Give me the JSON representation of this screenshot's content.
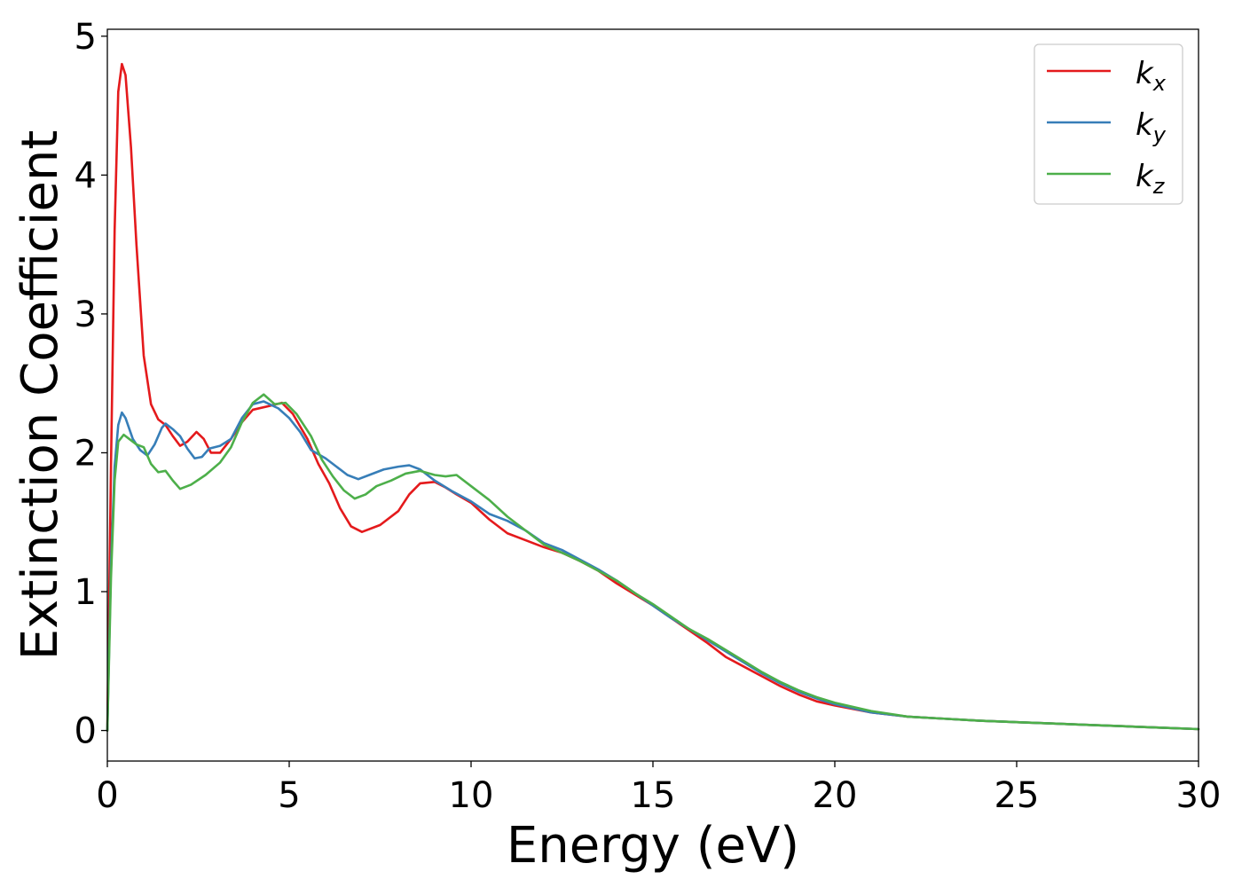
{
  "chart_data": {
    "type": "line",
    "title": "",
    "xlabel": "Energy (eV)",
    "ylabel": "Extinction Coefficient",
    "xlim": [
      0,
      30
    ],
    "ylim": [
      -0.22,
      5.05
    ],
    "xticks": [
      0,
      5,
      10,
      15,
      20,
      25,
      30
    ],
    "yticks": [
      0,
      1,
      2,
      3,
      4,
      5
    ],
    "grid": false,
    "legend_position": "top-right",
    "series": [
      {
        "name": "k_x",
        "label_main": "k",
        "label_sub": "x",
        "color": "#e41a1c",
        "points": [
          [
            0,
            0
          ],
          [
            0.1,
            1.9
          ],
          [
            0.2,
            3.6
          ],
          [
            0.3,
            4.6
          ],
          [
            0.4,
            4.8
          ],
          [
            0.5,
            4.72
          ],
          [
            0.65,
            4.2
          ],
          [
            0.8,
            3.5
          ],
          [
            1.0,
            2.7
          ],
          [
            1.2,
            2.35
          ],
          [
            1.4,
            2.24
          ],
          [
            1.6,
            2.2
          ],
          [
            1.8,
            2.12
          ],
          [
            2.0,
            2.05
          ],
          [
            2.2,
            2.08
          ],
          [
            2.45,
            2.15
          ],
          [
            2.65,
            2.1
          ],
          [
            2.85,
            2.0
          ],
          [
            3.1,
            2.0
          ],
          [
            3.4,
            2.1
          ],
          [
            3.7,
            2.22
          ],
          [
            4.0,
            2.31
          ],
          [
            4.5,
            2.34
          ],
          [
            4.8,
            2.36
          ],
          [
            5.1,
            2.28
          ],
          [
            5.5,
            2.1
          ],
          [
            5.8,
            1.92
          ],
          [
            6.1,
            1.78
          ],
          [
            6.4,
            1.6
          ],
          [
            6.7,
            1.47
          ],
          [
            7.0,
            1.43
          ],
          [
            7.5,
            1.48
          ],
          [
            8.0,
            1.58
          ],
          [
            8.3,
            1.7
          ],
          [
            8.6,
            1.78
          ],
          [
            9.0,
            1.79
          ],
          [
            9.3,
            1.75
          ],
          [
            9.6,
            1.7
          ],
          [
            10.0,
            1.64
          ],
          [
            10.5,
            1.52
          ],
          [
            11.0,
            1.42
          ],
          [
            11.5,
            1.37
          ],
          [
            12.0,
            1.32
          ],
          [
            12.5,
            1.28
          ],
          [
            13.0,
            1.22
          ],
          [
            13.5,
            1.15
          ],
          [
            14.0,
            1.06
          ],
          [
            14.5,
            0.98
          ],
          [
            15.0,
            0.9
          ],
          [
            15.5,
            0.81
          ],
          [
            16.0,
            0.72
          ],
          [
            16.5,
            0.63
          ],
          [
            17.0,
            0.53
          ],
          [
            17.5,
            0.46
          ],
          [
            18.0,
            0.39
          ],
          [
            18.5,
            0.32
          ],
          [
            19.0,
            0.26
          ],
          [
            19.5,
            0.21
          ],
          [
            20.0,
            0.18
          ],
          [
            21.0,
            0.13
          ],
          [
            22.0,
            0.1
          ],
          [
            23.0,
            0.085
          ],
          [
            24.0,
            0.07
          ],
          [
            25.0,
            0.06
          ],
          [
            26.0,
            0.05
          ],
          [
            27.0,
            0.04
          ],
          [
            28.0,
            0.03
          ],
          [
            29.0,
            0.02
          ],
          [
            30.0,
            0.01
          ]
        ]
      },
      {
        "name": "k_y",
        "label_main": "k",
        "label_sub": "y",
        "color": "#377eb8",
        "points": [
          [
            0,
            0
          ],
          [
            0.1,
            1.2
          ],
          [
            0.2,
            1.9
          ],
          [
            0.3,
            2.2
          ],
          [
            0.4,
            2.29
          ],
          [
            0.5,
            2.25
          ],
          [
            0.7,
            2.1
          ],
          [
            0.9,
            2.02
          ],
          [
            1.1,
            1.98
          ],
          [
            1.3,
            2.06
          ],
          [
            1.5,
            2.18
          ],
          [
            1.6,
            2.21
          ],
          [
            1.8,
            2.17
          ],
          [
            2.0,
            2.12
          ],
          [
            2.2,
            2.03
          ],
          [
            2.4,
            1.96
          ],
          [
            2.6,
            1.97
          ],
          [
            2.8,
            2.03
          ],
          [
            3.1,
            2.05
          ],
          [
            3.4,
            2.1
          ],
          [
            3.7,
            2.25
          ],
          [
            4.0,
            2.35
          ],
          [
            4.3,
            2.37
          ],
          [
            4.7,
            2.32
          ],
          [
            5.0,
            2.25
          ],
          [
            5.3,
            2.15
          ],
          [
            5.6,
            2.02
          ],
          [
            6.0,
            1.96
          ],
          [
            6.3,
            1.9
          ],
          [
            6.6,
            1.84
          ],
          [
            6.9,
            1.81
          ],
          [
            7.2,
            1.84
          ],
          [
            7.6,
            1.88
          ],
          [
            8.0,
            1.9
          ],
          [
            8.3,
            1.91
          ],
          [
            8.6,
            1.88
          ],
          [
            9.0,
            1.8
          ],
          [
            9.5,
            1.72
          ],
          [
            10.0,
            1.65
          ],
          [
            10.5,
            1.56
          ],
          [
            11.0,
            1.51
          ],
          [
            11.5,
            1.44
          ],
          [
            12.0,
            1.35
          ],
          [
            12.5,
            1.3
          ],
          [
            13.0,
            1.23
          ],
          [
            13.5,
            1.16
          ],
          [
            14.0,
            1.08
          ],
          [
            14.5,
            0.99
          ],
          [
            15.0,
            0.9
          ],
          [
            15.5,
            0.81
          ],
          [
            16.0,
            0.73
          ],
          [
            16.5,
            0.65
          ],
          [
            17.0,
            0.57
          ],
          [
            17.5,
            0.49
          ],
          [
            18.0,
            0.41
          ],
          [
            18.5,
            0.34
          ],
          [
            19.0,
            0.28
          ],
          [
            19.5,
            0.23
          ],
          [
            20.0,
            0.19
          ],
          [
            21.0,
            0.13
          ],
          [
            22.0,
            0.1
          ],
          [
            23.0,
            0.085
          ],
          [
            24.0,
            0.07
          ],
          [
            25.0,
            0.06
          ],
          [
            26.0,
            0.05
          ],
          [
            27.0,
            0.04
          ],
          [
            28.0,
            0.03
          ],
          [
            29.0,
            0.02
          ],
          [
            30.0,
            0.01
          ]
        ]
      },
      {
        "name": "k_z",
        "label_main": "k",
        "label_sub": "z",
        "color": "#4daf4a",
        "points": [
          [
            0,
            0
          ],
          [
            0.1,
            1.1
          ],
          [
            0.2,
            1.8
          ],
          [
            0.3,
            2.08
          ],
          [
            0.45,
            2.13
          ],
          [
            0.6,
            2.1
          ],
          [
            0.8,
            2.06
          ],
          [
            1.0,
            2.04
          ],
          [
            1.2,
            1.92
          ],
          [
            1.4,
            1.86
          ],
          [
            1.6,
            1.87
          ],
          [
            1.8,
            1.8
          ],
          [
            2.0,
            1.74
          ],
          [
            2.3,
            1.77
          ],
          [
            2.7,
            1.84
          ],
          [
            3.1,
            1.93
          ],
          [
            3.4,
            2.04
          ],
          [
            3.7,
            2.22
          ],
          [
            4.0,
            2.36
          ],
          [
            4.3,
            2.42
          ],
          [
            4.6,
            2.35
          ],
          [
            4.9,
            2.36
          ],
          [
            5.2,
            2.28
          ],
          [
            5.6,
            2.12
          ],
          [
            5.9,
            1.95
          ],
          [
            6.2,
            1.83
          ],
          [
            6.5,
            1.73
          ],
          [
            6.8,
            1.67
          ],
          [
            7.1,
            1.7
          ],
          [
            7.4,
            1.76
          ],
          [
            7.8,
            1.8
          ],
          [
            8.2,
            1.85
          ],
          [
            8.6,
            1.87
          ],
          [
            9.0,
            1.84
          ],
          [
            9.3,
            1.83
          ],
          [
            9.6,
            1.84
          ],
          [
            10.0,
            1.76
          ],
          [
            10.5,
            1.66
          ],
          [
            11.0,
            1.54
          ],
          [
            11.5,
            1.44
          ],
          [
            12.0,
            1.34
          ],
          [
            12.5,
            1.28
          ],
          [
            13.0,
            1.22
          ],
          [
            13.5,
            1.15
          ],
          [
            14.0,
            1.08
          ],
          [
            14.5,
            0.99
          ],
          [
            15.0,
            0.91
          ],
          [
            15.5,
            0.82
          ],
          [
            16.0,
            0.73
          ],
          [
            16.5,
            0.66
          ],
          [
            17.0,
            0.58
          ],
          [
            17.5,
            0.5
          ],
          [
            18.0,
            0.42
          ],
          [
            18.5,
            0.35
          ],
          [
            19.0,
            0.29
          ],
          [
            19.5,
            0.24
          ],
          [
            20.0,
            0.2
          ],
          [
            21.0,
            0.14
          ],
          [
            22.0,
            0.1
          ],
          [
            23.0,
            0.085
          ],
          [
            24.0,
            0.07
          ],
          [
            25.0,
            0.06
          ],
          [
            26.0,
            0.05
          ],
          [
            27.0,
            0.04
          ],
          [
            28.0,
            0.03
          ],
          [
            29.0,
            0.02
          ],
          [
            30.0,
            0.01
          ]
        ]
      }
    ]
  }
}
